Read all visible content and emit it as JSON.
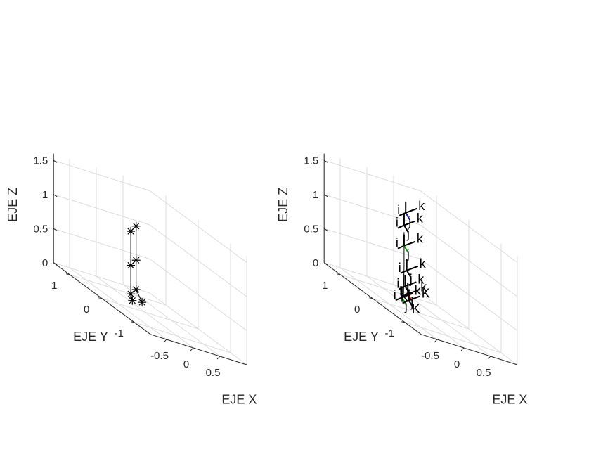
{
  "chart_data": [
    {
      "type": "scatter",
      "xlabel": "EJE X",
      "ylabel": "EJE Y",
      "zlabel": "EJE Z",
      "xlim": [
        -0.5,
        0.5
      ],
      "ylim": [
        -1,
        1
      ],
      "zlim": [
        0,
        1.5
      ],
      "x_ticks": [
        "-0.5",
        "0",
        "0.5"
      ],
      "y_ticks": [
        "1",
        "0",
        "-1"
      ],
      "z_ticks": [
        "0",
        "0.5",
        "1",
        "1.5"
      ],
      "grid": true,
      "marker": "*",
      "series": [
        {
          "points": [
            {
              "x": 0.1,
              "y": 0.55,
              "z": 0.0
            },
            {
              "x": -0.05,
              "y": 0.35,
              "z": 0.13
            },
            {
              "x": -0.05,
              "y": 0.35,
              "z": 0.55
            },
            {
              "x": -0.05,
              "y": 0.35,
              "z": 1.05
            },
            {
              "x": 0.05,
              "y": 0.35,
              "z": 1.15
            },
            {
              "x": 0.05,
              "y": 0.35,
              "z": 0.65
            },
            {
              "x": 0.05,
              "y": 0.35,
              "z": 0.22
            },
            {
              "x": 0.1,
              "y": 0.25,
              "z": 0.08
            }
          ]
        }
      ]
    },
    {
      "type": "scatter",
      "xlabel": "EJE X",
      "ylabel": "EJE Y",
      "zlabel": "EJE Z",
      "xlim": [
        -0.5,
        0.5
      ],
      "ylim": [
        -1,
        1
      ],
      "zlim": [
        0,
        1.5
      ],
      "x_ticks": [
        "-0.5",
        "0",
        "0.5"
      ],
      "y_ticks": [
        "1",
        "0",
        "-1"
      ],
      "z_ticks": [
        "0",
        "0.5",
        "1",
        "1.5"
      ],
      "grid": true,
      "frames": [
        {
          "x": 0.05,
          "y": 0.5,
          "z": 0.05,
          "labels": [
            "i",
            "j",
            "k"
          ],
          "color": "#00a000"
        },
        {
          "x": 0.05,
          "y": 0.4,
          "z": 0.25,
          "labels": [
            "i",
            "j",
            "k"
          ],
          "color": "#000000"
        },
        {
          "x": 0.1,
          "y": 0.4,
          "z": 0.15,
          "labels": [
            "i",
            "j",
            "k"
          ],
          "color": "#d00000"
        },
        {
          "x": 0.05,
          "y": 0.35,
          "z": 0.5,
          "labels": [
            "i",
            "j",
            "k"
          ],
          "color": "#000000"
        },
        {
          "x": 0.0,
          "y": 0.35,
          "z": 0.85,
          "labels": [
            "i",
            "j",
            "k"
          ],
          "color": "#00a000"
        },
        {
          "x": 0.0,
          "y": 0.35,
          "z": 1.15,
          "labels": [
            "i",
            "j",
            "k"
          ],
          "color": "#000000"
        },
        {
          "x": 0.0,
          "y": 0.3,
          "z": 1.35,
          "labels": [
            "i",
            "j",
            "k"
          ],
          "color": "#1a1aa0"
        },
        {
          "x": 0.15,
          "y": 0.45,
          "z": 0.05,
          "labels": [
            "K",
            "K",
            "K"
          ],
          "color": "#000000"
        }
      ],
      "path": [
        {
          "x": 0.05,
          "y": 0.45,
          "z": 0.08
        },
        {
          "x": 0.0,
          "y": 0.35,
          "z": 0.55
        },
        {
          "x": 0.0,
          "y": 0.35,
          "z": 1.05
        }
      ]
    }
  ]
}
